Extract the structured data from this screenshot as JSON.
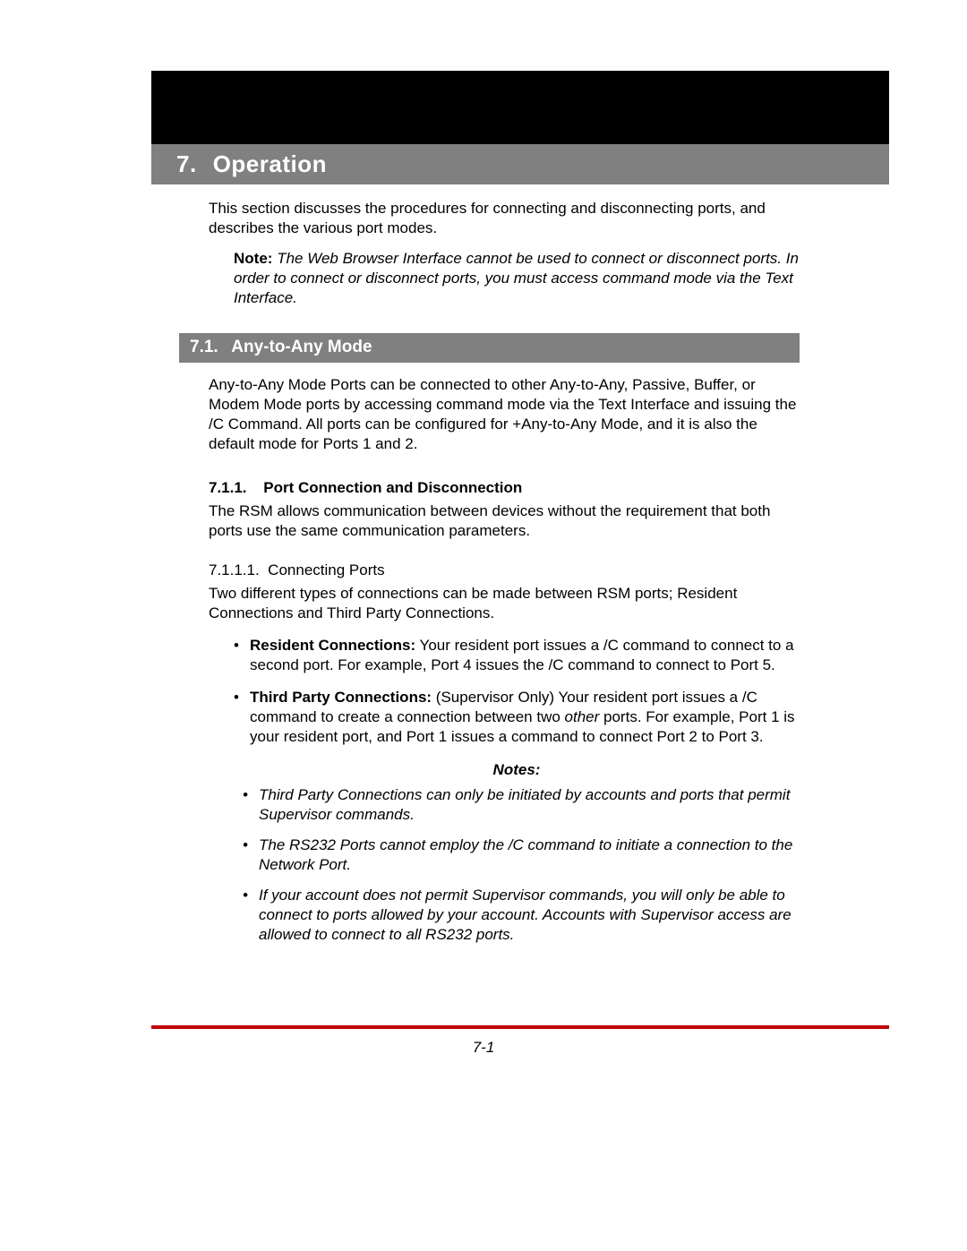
{
  "colors": {
    "black": "#000000",
    "gray_bar": "#808080",
    "white": "#ffffff",
    "red_rule": "#c00000",
    "text": "#000000"
  },
  "chapter": {
    "number": "7.",
    "title": "Operation"
  },
  "intro": "This section discusses the procedures for connecting and disconnecting ports, and describes the various port modes.",
  "top_note": {
    "label": "Note:",
    "body": "The Web Browser Interface cannot be used to connect or disconnect ports.  In order to connect or disconnect ports, you must access command mode via the Text Interface."
  },
  "section_7_1": {
    "number": "7.1.",
    "title": "Any-to-Any Mode",
    "body": "Any-to-Any Mode Ports can be connected to other Any-to-Any, Passive, Buffer, or Modem Mode ports by accessing command mode via the Text Interface and issuing the /C Command.  All ports can be configured for +Any-to-Any Mode, and it is also the default mode for Ports 1 and 2."
  },
  "section_7_1_1": {
    "number": "7.1.1.",
    "title": "Port Connection and Disconnection",
    "body": "The RSM allows communication between devices without the requirement that both ports use the same communication parameters."
  },
  "section_7_1_1_1": {
    "number": "7.1.1.1.",
    "title": "Connecting Ports",
    "body": "Two different types of connections can be made between RSM ports; Resident Connections and Third Party Connections.",
    "bullets": [
      {
        "lead": "Resident Connections:",
        "rest": "  Your resident port issues a /C command to connect to a second port.  For example, Port 4 issues the /C command to connect to Port 5."
      },
      {
        "lead": "Third Party Connections:",
        "rest_before_italic": "  (Supervisor Only) Your resident port issues a /C command to create a connection between two ",
        "italic_word": "other",
        "rest_after_italic": " ports.  For example, Port 1 is your resident port, and Port 1 issues a command to connect Port 2 to Port 3."
      }
    ]
  },
  "notes": {
    "title": "Notes:",
    "items": [
      "Third Party Connections can only be initiated by accounts and ports that permit Supervisor commands.",
      "The RS232 Ports cannot employ the /C command to initiate a connection to the Network Port.",
      "If your account does not permit Supervisor commands, you will only be able to connect to ports allowed by your account.  Accounts with Supervisor access are allowed to connect to all RS232 ports."
    ]
  },
  "page_number": "7-1"
}
